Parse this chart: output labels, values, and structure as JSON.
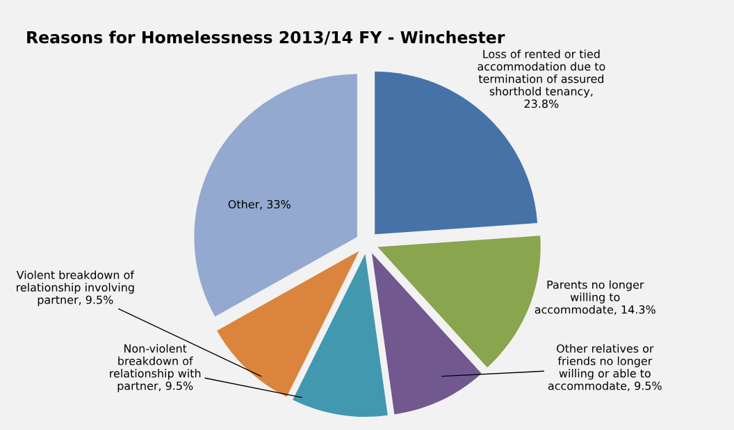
{
  "chart_data": {
    "type": "pie",
    "title": "Reasons for Homelessness 2013/14 FY - Winchester",
    "categories": [
      "Loss of rented or tied accommodation due to termination of assured shorthold tenancy",
      "Parents no longer willing to accommodate",
      "Other relatives or friends no longer willing or able to accommodate",
      "Non-violent breakdown of relationship with partner",
      "Violent breakdown of relationship involving partner",
      "Other"
    ],
    "values": [
      23.8,
      14.3,
      9.5,
      9.5,
      9.5,
      33
    ],
    "colors": [
      "#4573a7",
      "#89a54e",
      "#71588f",
      "#4198af",
      "#db843d",
      "#93a9cf"
    ],
    "value_labels": [
      ", 23.8%",
      ", 14.3%",
      ", 9.5%",
      ", 9.5%",
      ", 9.5%",
      ", 33%"
    ],
    "legend": false
  }
}
